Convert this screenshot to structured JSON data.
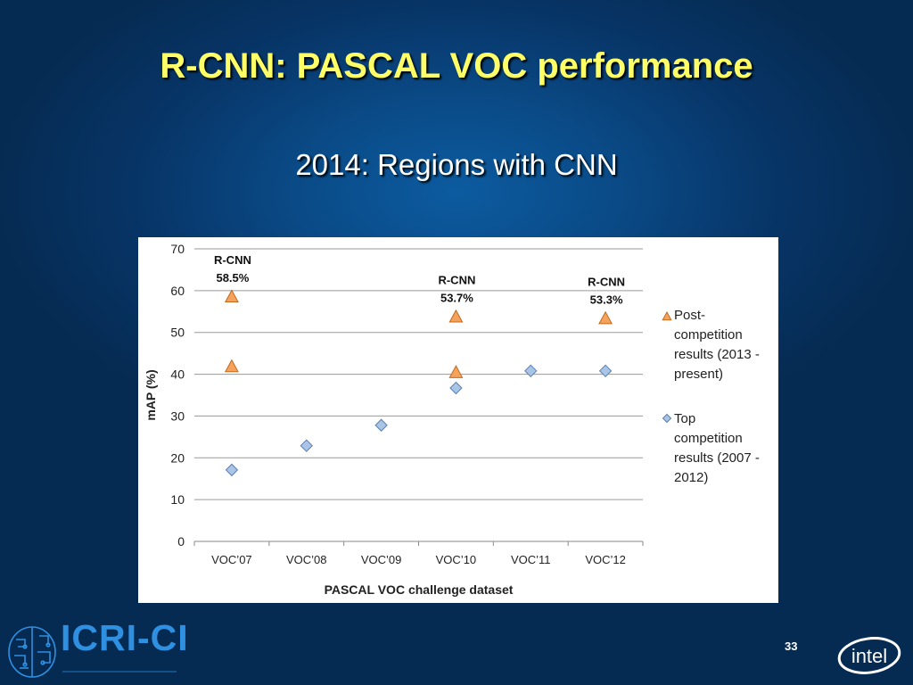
{
  "slide": {
    "title": "R-CNN: PASCAL VOC performance",
    "subtitle": "2014: Regions with CNN",
    "page_number": "33"
  },
  "logos": {
    "left_logo_text": "ICRI-CI",
    "left_logo_icon": "brain-icon",
    "right_logo_text": "intel"
  },
  "colors": {
    "title": "#ffff66",
    "triangle_fill": "#f5a25d",
    "triangle_stroke": "#c06a1d",
    "diamond_fill": "#a9c4e6",
    "diamond_stroke": "#5a7fb0"
  },
  "chart_data": {
    "type": "scatter",
    "categories": [
      "VOC’07",
      "VOC’08",
      "VOC’09",
      "VOC’10",
      "VOC’11",
      "VOC’12"
    ],
    "xlabel": "PASCAL VOC challenge dataset",
    "ylabel": "mAP   (%)",
    "ylim": [
      0,
      70
    ],
    "yticks": [
      0,
      10,
      20,
      30,
      40,
      50,
      60,
      70
    ],
    "grid": true,
    "legend_position": "right",
    "series": [
      {
        "name": "Post-competition results (2013 - present)",
        "legend_lines": [
          "Post-",
          "competition",
          "results (2013 -",
          "present)"
        ],
        "marker": "triangle",
        "points": [
          {
            "category": "VOC’07",
            "y": 58.5
          },
          {
            "category": "VOC’07",
            "y": 41.8
          },
          {
            "category": "VOC’10",
            "y": 53.7
          },
          {
            "category": "VOC’10",
            "y": 40.4
          },
          {
            "category": "VOC’12",
            "y": 53.3
          }
        ]
      },
      {
        "name": "Top competition results (2007 - 2012)",
        "legend_lines": [
          "Top",
          "competition",
          "results (2007 -",
          "2012)"
        ],
        "marker": "diamond",
        "points": [
          {
            "category": "VOC’07",
            "y": 17.1
          },
          {
            "category": "VOC’08",
            "y": 22.9
          },
          {
            "category": "VOC’09",
            "y": 27.8
          },
          {
            "category": "VOC’10",
            "y": 36.7
          },
          {
            "category": "VOC’11",
            "y": 40.8
          },
          {
            "category": "VOC’12",
            "y": 40.8
          }
        ]
      }
    ],
    "annotations": [
      {
        "category": "VOC’07",
        "lines": [
          "R-CNN",
          "58.5%"
        ]
      },
      {
        "category": "VOC’10",
        "lines": [
          "R-CNN",
          "53.7%"
        ]
      },
      {
        "category": "VOC’12",
        "lines": [
          "R-CNN",
          "53.3%"
        ]
      }
    ]
  }
}
